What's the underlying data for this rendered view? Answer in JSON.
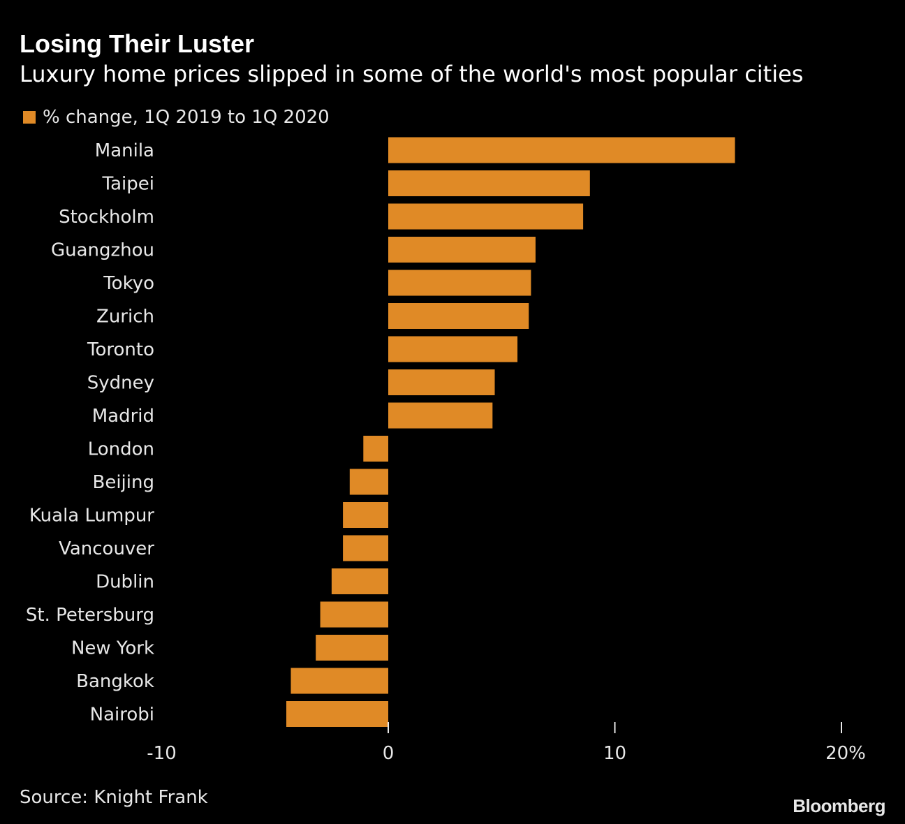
{
  "header": {
    "title": "Losing Their Luster",
    "subtitle": "Luxury home prices slipped in some of the world's most popular cities"
  },
  "legend": {
    "label": "% change, 1Q 2019 to 1Q 2020"
  },
  "footer": {
    "source": "Source: Knight Frank",
    "brand": "Bloomberg"
  },
  "colors": {
    "background": "#000000",
    "bar": "#e08a26",
    "text": "#e8e8e8"
  },
  "chart_data": {
    "type": "bar",
    "orientation": "horizontal",
    "title": "Losing Their Luster",
    "subtitle": "Luxury home prices slipped in some of the world's most popular cities",
    "categories": [
      "Manila",
      "Taipei",
      "Stockholm",
      "Guangzhou",
      "Tokyo",
      "Zurich",
      "Toronto",
      "Sydney",
      "Madrid",
      "London",
      "Beijing",
      "Kuala Lumpur",
      "Vancouver",
      "Dublin",
      "St. Petersburg",
      "New York",
      "Bangkok",
      "Nairobi"
    ],
    "series": [
      {
        "name": "% change, 1Q 2019 to 1Q 2020",
        "values": [
          15.3,
          8.9,
          8.6,
          6.5,
          6.3,
          6.2,
          5.7,
          4.7,
          4.6,
          -1.1,
          -1.7,
          -2.0,
          -2.0,
          -2.5,
          -3.0,
          -3.2,
          -4.3,
          -4.5
        ]
      }
    ],
    "xlim": [
      -10,
      20
    ],
    "xticks": [
      -10,
      0,
      10,
      20
    ],
    "xtick_labels": [
      "-10",
      "0",
      "10",
      "20%"
    ],
    "xlabel": "",
    "ylabel": "",
    "grid": false,
    "legend_position": "top-left"
  }
}
